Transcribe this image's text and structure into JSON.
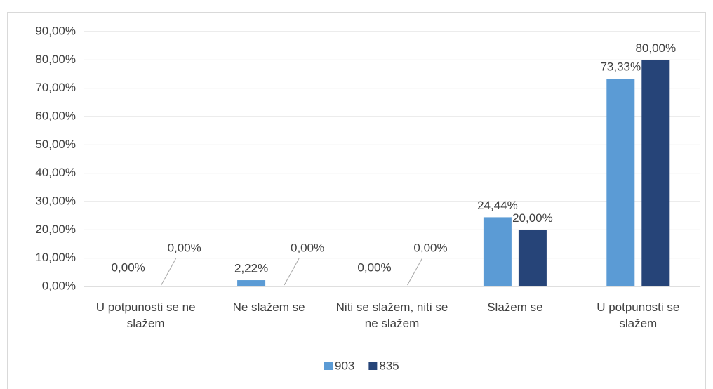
{
  "chart_data": {
    "type": "bar",
    "categories": [
      "U potpunosti se ne slažem",
      "Ne slažem se",
      "Niti se slažem, niti se ne slažem",
      "Slažem se",
      "U potpunosti se slažem"
    ],
    "series": [
      {
        "name": "903",
        "color": "#5b9bd5",
        "values": [
          0,
          2.22,
          0,
          24.44,
          73.33
        ],
        "value_labels": [
          "0,00%",
          "2,22%",
          "0,00%",
          "24,44%",
          "73,33%"
        ]
      },
      {
        "name": "835",
        "color": "#264478",
        "values": [
          0,
          0,
          0,
          20,
          80
        ],
        "value_labels": [
          "0,00%",
          "0,00%",
          "0,00%",
          "20,00%",
          "80,00%"
        ]
      }
    ],
    "ylim": [
      0,
      90
    ],
    "yticks": [
      {
        "value": 0,
        "label": "0,00%"
      },
      {
        "value": 10,
        "label": "10,00%"
      },
      {
        "value": 20,
        "label": "20,00%"
      },
      {
        "value": 30,
        "label": "30,00%"
      },
      {
        "value": 40,
        "label": "40,00%"
      },
      {
        "value": 50,
        "label": "50,00%"
      },
      {
        "value": 60,
        "label": "60,00%"
      },
      {
        "value": 70,
        "label": "70,00%"
      },
      {
        "value": 80,
        "label": "80,00%"
      },
      {
        "value": 90,
        "label": "90,00%"
      }
    ],
    "grid": true,
    "legend": "bottom"
  }
}
